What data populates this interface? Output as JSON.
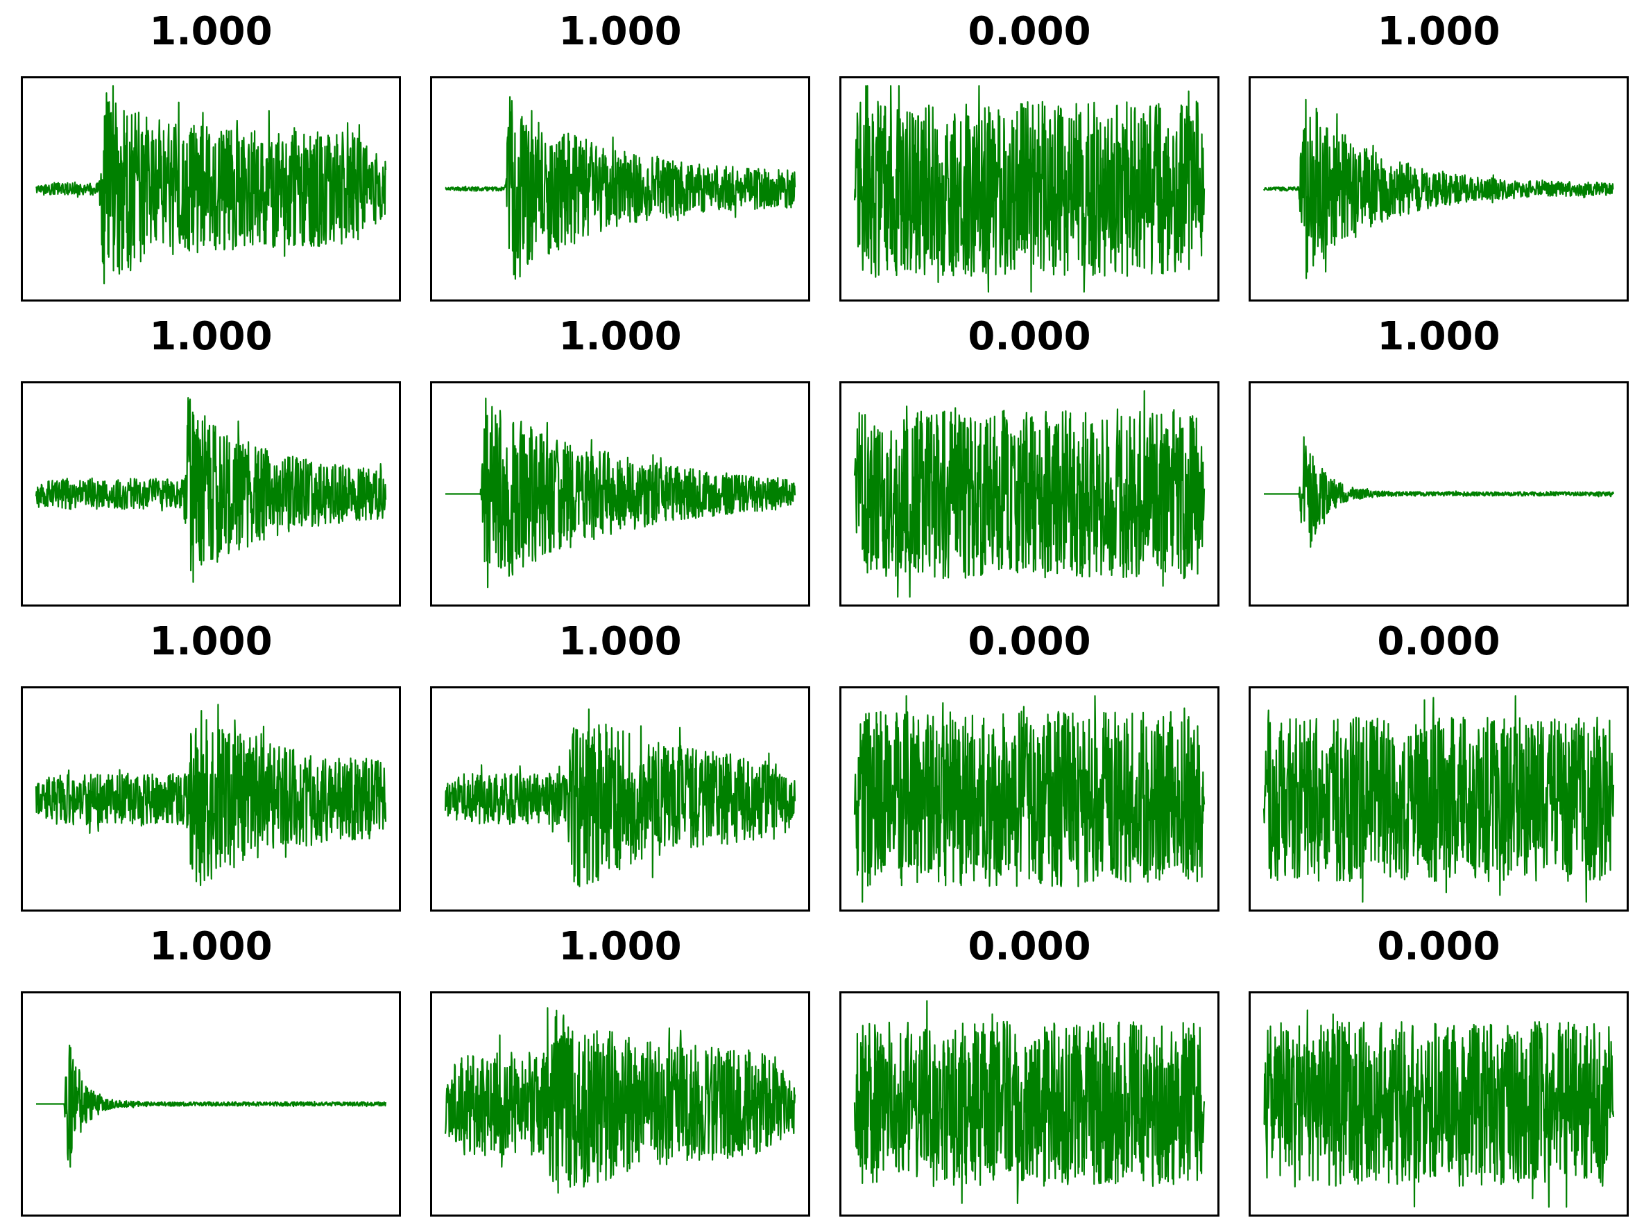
{
  "colors": {
    "waveform": "#008000",
    "frame": "#000000",
    "background": "#ffffff",
    "title": "#000000"
  },
  "chart_data": [
    {
      "type": "line",
      "title": "1.000",
      "waveform": {
        "shape": "burst",
        "onset": 0.18,
        "pre": 0.06,
        "peak": 1.0,
        "decay": 0.15,
        "sustain": 0.55,
        "offset": 0.06
      }
    },
    {
      "type": "line",
      "title": "1.000",
      "waveform": {
        "shape": "burst",
        "onset": 0.17,
        "pre": 0.02,
        "peak": 1.0,
        "decay": 0.25,
        "sustain": 0.15,
        "offset": 0.0
      }
    },
    {
      "type": "line",
      "title": "0.000",
      "waveform": {
        "shape": "noise",
        "level": 0.85
      }
    },
    {
      "type": "line",
      "title": "1.000",
      "waveform": {
        "shape": "burst",
        "onset": 0.1,
        "pre": 0.02,
        "peak": 1.0,
        "decay": 0.2,
        "sustain": 0.05,
        "offset": 0.0
      }
    },
    {
      "type": "line",
      "title": "1.000",
      "waveform": {
        "shape": "burst",
        "onset": 0.42,
        "pre": 0.15,
        "peak": 1.0,
        "decay": 0.2,
        "sustain": 0.2,
        "offset": 0.0
      }
    },
    {
      "type": "line",
      "title": "1.000",
      "waveform": {
        "shape": "burst",
        "onset": 0.1,
        "pre": 0.0,
        "peak": 1.0,
        "decay": 0.35,
        "sustain": 0.08,
        "offset": 0.0
      }
    },
    {
      "type": "line",
      "title": "0.000",
      "waveform": {
        "shape": "noise",
        "level": 0.82
      }
    },
    {
      "type": "line",
      "title": "1.000",
      "waveform": {
        "shape": "burst",
        "onset": 0.1,
        "pre": 0.0,
        "peak": 1.0,
        "decay": 0.05,
        "sustain": 0.02,
        "offset": 0.0
      }
    },
    {
      "type": "line",
      "title": "1.000",
      "waveform": {
        "shape": "burst",
        "onset": 0.43,
        "pre": 0.25,
        "peak": 1.0,
        "decay": 0.2,
        "sustain": 0.35,
        "offset": 0.0
      }
    },
    {
      "type": "line",
      "title": "1.000",
      "waveform": {
        "shape": "burst",
        "onset": 0.35,
        "pre": 0.25,
        "peak": 0.95,
        "decay": 0.3,
        "sustain": 0.3,
        "offset": 0.07
      }
    },
    {
      "type": "line",
      "title": "0.000",
      "waveform": {
        "shape": "noise",
        "level": 0.85
      }
    },
    {
      "type": "line",
      "title": "0.000",
      "waveform": {
        "shape": "noise",
        "level": 0.8
      }
    },
    {
      "type": "line",
      "title": "1.000",
      "waveform": {
        "shape": "burst",
        "onset": 0.08,
        "pre": 0.0,
        "peak": 1.0,
        "decay": 0.04,
        "sustain": 0.02,
        "offset": 0.0
      }
    },
    {
      "type": "line",
      "title": "1.000",
      "waveform": {
        "shape": "burst",
        "onset": 0.27,
        "pre": 0.5,
        "peak": 1.0,
        "decay": 0.3,
        "sustain": 0.45,
        "offset": 0.05
      }
    },
    {
      "type": "line",
      "title": "0.000",
      "waveform": {
        "shape": "noise",
        "level": 0.8
      }
    },
    {
      "type": "line",
      "title": "0.000",
      "waveform": {
        "shape": "noise",
        "level": 0.8
      }
    }
  ]
}
